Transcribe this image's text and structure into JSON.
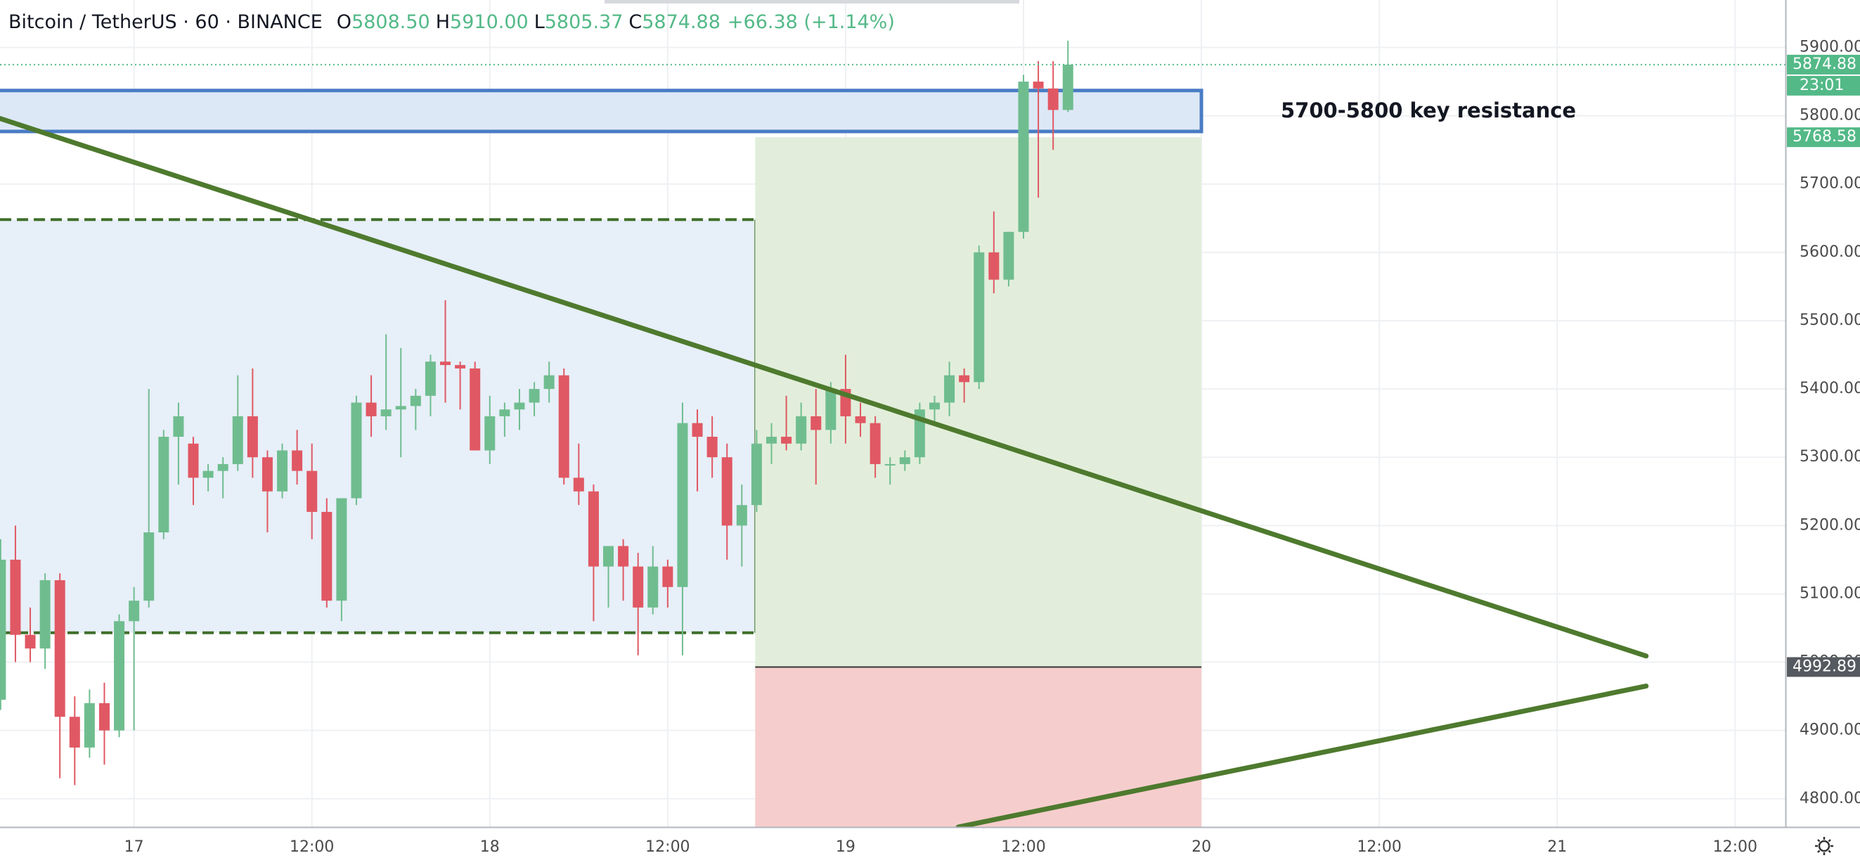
{
  "chart_data": {
    "type": "candlestick",
    "title": "Bitcoin / TetherUS · 60 · BINANCE",
    "ohlc": [
      {
        "key": "O",
        "value": "5808.50"
      },
      {
        "key": "H",
        "value": "5910.00"
      },
      {
        "key": "L",
        "value": "5805.37"
      },
      {
        "key": "C",
        "value": "5874.88"
      }
    ],
    "change": "+66.38 (+1.14%)",
    "up_color": "#6fbd8f",
    "down_color": "#e05863",
    "x": [
      -9,
      -8,
      -7,
      -6,
      -5,
      -4,
      -3,
      -2,
      -1,
      0,
      1,
      2,
      3,
      4,
      5,
      6,
      7,
      8,
      9,
      10,
      11,
      12,
      13,
      14,
      15,
      16,
      17,
      18,
      19,
      20,
      21,
      22,
      23,
      24,
      25,
      26,
      27,
      28,
      29,
      30,
      31,
      32,
      33,
      34,
      35,
      36,
      37,
      38,
      39,
      40,
      41,
      42,
      43,
      44,
      45,
      46,
      47,
      48,
      49,
      50,
      51,
      52,
      53,
      54,
      55,
      56,
      57,
      58,
      59,
      60,
      61,
      62,
      63
    ],
    "open": [
      4945,
      5150,
      5040,
      5020,
      5120,
      4920,
      4875,
      4940,
      4900,
      5060,
      5090,
      5190,
      5330,
      5320,
      5270,
      5280,
      5290,
      5360,
      5300,
      5250,
      5310,
      5280,
      5220,
      5090,
      5240,
      5380,
      5360,
      5370,
      5375,
      5390,
      5440,
      5435,
      5430,
      5310,
      5360,
      5370,
      5380,
      5400,
      5420,
      5270,
      5250,
      5140,
      5170,
      5140,
      5080,
      5140,
      5110,
      5350,
      5330,
      5300,
      5200,
      5230,
      5320,
      5330,
      5320,
      5360,
      5340,
      5400,
      5360,
      5350,
      5290,
      5290,
      5300,
      5370,
      5380,
      5420,
      5410,
      5600,
      5560,
      5630,
      5850,
      5840,
      5808.5
    ],
    "high": [
      5180,
      5200,
      5080,
      5130,
      5130,
      4950,
      4960,
      4970,
      5070,
      5110,
      5400,
      5340,
      5380,
      5330,
      5290,
      5300,
      5420,
      5430,
      5310,
      5320,
      5340,
      5320,
      5240,
      5240,
      5390,
      5420,
      5480,
      5460,
      5400,
      5450,
      5530,
      5440,
      5440,
      5390,
      5380,
      5400,
      5410,
      5440,
      5430,
      5320,
      5260,
      5170,
      5180,
      5160,
      5170,
      5150,
      5380,
      5370,
      5360,
      5320,
      5260,
      5340,
      5350,
      5390,
      5380,
      5400,
      5410,
      5450,
      5380,
      5360,
      5300,
      5310,
      5380,
      5390,
      5440,
      5430,
      5610,
      5660,
      5630,
      5860,
      5880,
      5880,
      5910
    ],
    "low": [
      4930,
      5000,
      5000,
      4990,
      4830,
      4820,
      4860,
      4850,
      4890,
      4900,
      5080,
      5180,
      5260,
      5230,
      5250,
      5240,
      5280,
      5270,
      5190,
      5240,
      5260,
      5180,
      5080,
      5060,
      5230,
      5330,
      5340,
      5300,
      5340,
      5360,
      5380,
      5370,
      5320,
      5290,
      5330,
      5340,
      5360,
      5380,
      5260,
      5230,
      5060,
      5080,
      5090,
      5010,
      5070,
      5080,
      5010,
      5250,
      5270,
      5150,
      5140,
      5220,
      5290,
      5310,
      5310,
      5260,
      5320,
      5320,
      5330,
      5270,
      5260,
      5280,
      5290,
      5350,
      5360,
      5380,
      5400,
      5540,
      5550,
      5620,
      5680,
      5750,
      5805.37
    ],
    "close": [
      5150,
      5040,
      5020,
      5120,
      4920,
      4875,
      4940,
      4900,
      5060,
      5090,
      5190,
      5330,
      5360,
      5270,
      5280,
      5290,
      5360,
      5300,
      5250,
      5310,
      5280,
      5220,
      5090,
      5240,
      5380,
      5360,
      5370,
      5375,
      5390,
      5440,
      5435,
      5430,
      5310,
      5360,
      5370,
      5380,
      5400,
      5420,
      5270,
      5250,
      5140,
      5170,
      5140,
      5080,
      5140,
      5110,
      5350,
      5330,
      5300,
      5200,
      5230,
      5320,
      5330,
      5320,
      5360,
      5340,
      5400,
      5360,
      5350,
      5290,
      5290,
      5300,
      5370,
      5380,
      5420,
      5410,
      5600,
      5560,
      5630,
      5850,
      5840,
      5808.5,
      5874.88
    ],
    "xlim": [
      -9.04,
      111.4
    ],
    "xticks": [
      {
        "value": 0,
        "label": "17"
      },
      {
        "value": 12,
        "label": "12:00"
      },
      {
        "value": 24,
        "label": "18"
      },
      {
        "value": 36,
        "label": "12:00"
      },
      {
        "value": 48,
        "label": "19"
      },
      {
        "value": 60,
        "label": "12:00"
      },
      {
        "value": 72,
        "label": "20"
      },
      {
        "value": 84,
        "label": "12:00"
      },
      {
        "value": 96,
        "label": "21"
      },
      {
        "value": 108,
        "label": "12:00"
      }
    ],
    "ylim": [
      4758.6,
      5969.5
    ],
    "yticks": [
      {
        "value": 4800,
        "label": "4800.00"
      },
      {
        "value": 4900,
        "label": "4900.00"
      },
      {
        "value": 5000,
        "label": "5000.00"
      },
      {
        "value": 5100,
        "label": "5100.00"
      },
      {
        "value": 5200,
        "label": "5200.00"
      },
      {
        "value": 5300,
        "label": "5300.00"
      },
      {
        "value": 5400,
        "label": "5400.00"
      },
      {
        "value": 5500,
        "label": "5500.00"
      },
      {
        "value": 5600,
        "label": "5600.00"
      },
      {
        "value": 5700,
        "label": "5700.00"
      },
      {
        "value": 5800,
        "label": "5800.00"
      },
      {
        "value": 5900,
        "label": "5900.00"
      }
    ],
    "grid": true,
    "last_price": 5874.88,
    "countdown": "23:01",
    "target_price": 5768.58,
    "entry_price": 4992.89,
    "annotation": "5700-5800 key resistance",
    "resistance_zone": {
      "x": [
        -9.04,
        72
      ],
      "y": [
        5777,
        5837
      ]
    },
    "range_box": {
      "x": [
        -9.04,
        41.9
      ],
      "y": [
        5043,
        5648
      ]
    },
    "position_x": [
      41.9,
      72
    ],
    "trendlines": [
      {
        "x": [
          -9.04,
          102
        ],
        "y": [
          5796,
          5009
        ]
      },
      {
        "x": [
          55.6,
          102
        ],
        "y": [
          4758.6,
          4965
        ]
      }
    ]
  }
}
